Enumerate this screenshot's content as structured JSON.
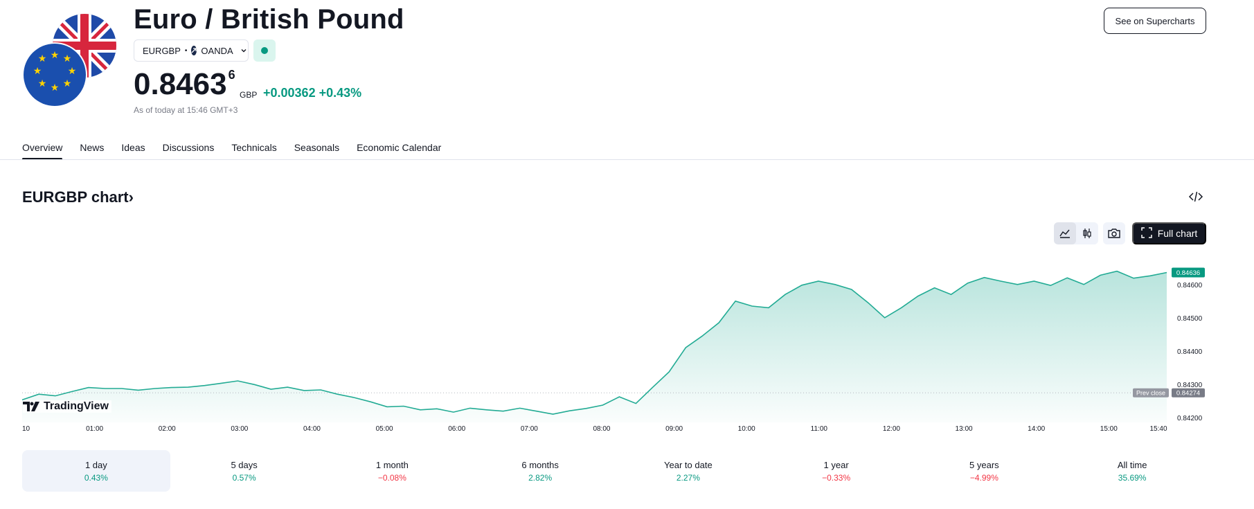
{
  "header": {
    "title": "Euro / British Pound",
    "symbol": "EURGBP",
    "separator": "•",
    "exchange": "OANDA",
    "price_main": "0.8463",
    "price_sup": "6",
    "currency": "GBP",
    "change": "+0.00362 +0.43%",
    "as_of": "As of today at 15:46 GMT+3",
    "supercharts_label": "See on Supercharts",
    "status": "market open"
  },
  "tabs": [
    {
      "label": "Overview",
      "active": true
    },
    {
      "label": "News"
    },
    {
      "label": "Ideas"
    },
    {
      "label": "Discussions"
    },
    {
      "label": "Technicals"
    },
    {
      "label": "Seasonals"
    },
    {
      "label": "Economic Calendar"
    }
  ],
  "chart_section": {
    "title": "EURGBP chart",
    "title_chevron": "›",
    "full_chart_label": "Full chart",
    "logo_text": "TradingView"
  },
  "chart_data": {
    "type": "area",
    "x_ticks": [
      "10",
      "01:00",
      "02:00",
      "03:00",
      "04:00",
      "05:00",
      "06:00",
      "07:00",
      "08:00",
      "09:00",
      "10:00",
      "11:00",
      "12:00",
      "13:00",
      "14:00",
      "15:00",
      "15:40"
    ],
    "y_ticks": [
      "0.84600",
      "0.84500",
      "0.84400",
      "0.84300",
      "0.84200"
    ],
    "ylim": [
      0.84185,
      0.84685
    ],
    "last_price_label": "0.84636",
    "prev_close_label": "Prev close",
    "prev_close_value": "0.84274",
    "prev_close": 0.84274,
    "series": [
      {
        "values": [
          0.84253,
          0.8427,
          0.84265,
          0.84278,
          0.8429,
          0.84287,
          0.84287,
          0.84282,
          0.84287,
          0.8429,
          0.84291,
          0.84296,
          0.84303,
          0.8431,
          0.84299,
          0.84285,
          0.84291,
          0.84281,
          0.84283,
          0.8427,
          0.8426,
          0.84247,
          0.84232,
          0.84234,
          0.84223,
          0.84226,
          0.84216,
          0.84228,
          0.84223,
          0.84219,
          0.84228,
          0.84219,
          0.8421,
          0.8422,
          0.84227,
          0.84237,
          0.84262,
          0.84242,
          0.8429,
          0.84337,
          0.8441,
          0.84445,
          0.84485,
          0.8455,
          0.84535,
          0.8453,
          0.8457,
          0.84598,
          0.8461,
          0.846,
          0.84585,
          0.84545,
          0.845,
          0.8453,
          0.84565,
          0.8459,
          0.8457,
          0.84604,
          0.84621,
          0.8461,
          0.846,
          0.8461,
          0.84597,
          0.8462,
          0.846,
          0.84628,
          0.8464,
          0.84619,
          0.84626,
          0.84636
        ]
      }
    ]
  },
  "periods": [
    {
      "label": "1 day",
      "value": "0.43%",
      "dir": "up",
      "active": true
    },
    {
      "label": "5 days",
      "value": "0.57%",
      "dir": "up"
    },
    {
      "label": "1 month",
      "value": "−0.08%",
      "dir": "down"
    },
    {
      "label": "6 months",
      "value": "2.82%",
      "dir": "up"
    },
    {
      "label": "Year to date",
      "value": "2.27%",
      "dir": "up"
    },
    {
      "label": "1 year",
      "value": "−0.33%",
      "dir": "down"
    },
    {
      "label": "5 years",
      "value": "−4.99%",
      "dir": "down"
    },
    {
      "label": "All time",
      "value": "35.69%",
      "dir": "up"
    }
  ],
  "colors": {
    "up": "#089981",
    "down": "#f23645",
    "line": "#22ab94",
    "text": "#131722",
    "muted": "#787b86"
  },
  "icons": {
    "logo": "eu-uk-flags-icon",
    "embed": "code-embed-icon",
    "line_chart": "line-chart-icon",
    "candles": "candles-icon",
    "camera": "camera-icon",
    "fullscreen": "fullscreen-icon"
  }
}
